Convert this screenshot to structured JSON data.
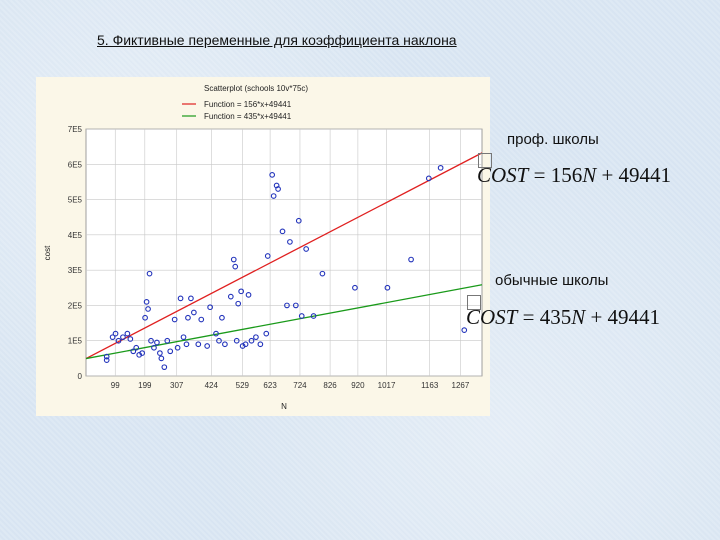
{
  "slide": {
    "title": "5. Фиктивные переменные для коэффициента наклона",
    "label_prof": "проф. школы",
    "label_regular": "обычные школы",
    "formula_prof": {
      "lhs": "COST",
      "rest": " = 156",
      "var": "N",
      "tail": " + 49441"
    },
    "formula_regular": {
      "lhs": "COST",
      "rest": " = 435",
      "var": "N",
      "tail": " + 49441"
    }
  },
  "chart_data": {
    "type": "scatter",
    "title": "Scatterplot (schools 10v*75c)",
    "legend": [
      "Function = 156*x+49441",
      "Function = 435*x+49441"
    ],
    "xlabel": "N",
    "ylabel": "cost",
    "x_ticks": [
      "99",
      "199",
      "307",
      "424",
      "529",
      "623",
      "724",
      "826",
      "920",
      "1017",
      "1163",
      "1267"
    ],
    "y_ticks": [
      "0",
      "1E5",
      "2E5",
      "3E5",
      "4E5",
      "5E5",
      "6E5",
      "7E5"
    ],
    "xlim": [
      0,
      1340
    ],
    "ylim": [
      0,
      700000
    ],
    "grid": true,
    "colors": {
      "points": "#2233bb",
      "line_red": "#e02020",
      "line_green": "#1a9a1a",
      "grid": "#c8c8c8"
    },
    "lines": [
      {
        "slope": 435,
        "intercept": 49441,
        "color": "#e02020"
      },
      {
        "slope": 156,
        "intercept": 49441,
        "color": "#1a9a1a"
      }
    ],
    "points": [
      [
        70,
        55000
      ],
      [
        70,
        45000
      ],
      [
        90,
        110000
      ],
      [
        100,
        120000
      ],
      [
        110,
        100000
      ],
      [
        125,
        110000
      ],
      [
        140,
        120000
      ],
      [
        150,
        105000
      ],
      [
        160,
        70000
      ],
      [
        170,
        80000
      ],
      [
        180,
        60000
      ],
      [
        190,
        65000
      ],
      [
        200,
        165000
      ],
      [
        205,
        210000
      ],
      [
        210,
        190000
      ],
      [
        215,
        290000
      ],
      [
        220,
        100000
      ],
      [
        230,
        80000
      ],
      [
        240,
        95000
      ],
      [
        250,
        65000
      ],
      [
        255,
        50000
      ],
      [
        265,
        25000
      ],
      [
        275,
        100000
      ],
      [
        285,
        70000
      ],
      [
        300,
        160000
      ],
      [
        310,
        80000
      ],
      [
        320,
        220000
      ],
      [
        330,
        110000
      ],
      [
        340,
        90000
      ],
      [
        345,
        165000
      ],
      [
        355,
        220000
      ],
      [
        365,
        180000
      ],
      [
        380,
        90000
      ],
      [
        390,
        160000
      ],
      [
        410,
        85000
      ],
      [
        420,
        195000
      ],
      [
        440,
        120000
      ],
      [
        450,
        100000
      ],
      [
        460,
        165000
      ],
      [
        470,
        90000
      ],
      [
        490,
        225000
      ],
      [
        500,
        330000
      ],
      [
        505,
        310000
      ],
      [
        510,
        100000
      ],
      [
        515,
        205000
      ],
      [
        525,
        240000
      ],
      [
        530,
        85000
      ],
      [
        540,
        90000
      ],
      [
        550,
        230000
      ],
      [
        560,
        100000
      ],
      [
        575,
        110000
      ],
      [
        590,
        90000
      ],
      [
        610,
        120000
      ],
      [
        615,
        340000
      ],
      [
        630,
        570000
      ],
      [
        635,
        510000
      ],
      [
        645,
        540000
      ],
      [
        650,
        530000
      ],
      [
        665,
        410000
      ],
      [
        680,
        200000
      ],
      [
        690,
        380000
      ],
      [
        710,
        200000
      ],
      [
        720,
        440000
      ],
      [
        730,
        170000
      ],
      [
        745,
        360000
      ],
      [
        770,
        170000
      ],
      [
        800,
        290000
      ],
      [
        910,
        250000
      ],
      [
        1020,
        250000
      ],
      [
        1100,
        330000
      ],
      [
        1160,
        560000
      ],
      [
        1200,
        590000
      ],
      [
        1280,
        130000
      ]
    ]
  }
}
